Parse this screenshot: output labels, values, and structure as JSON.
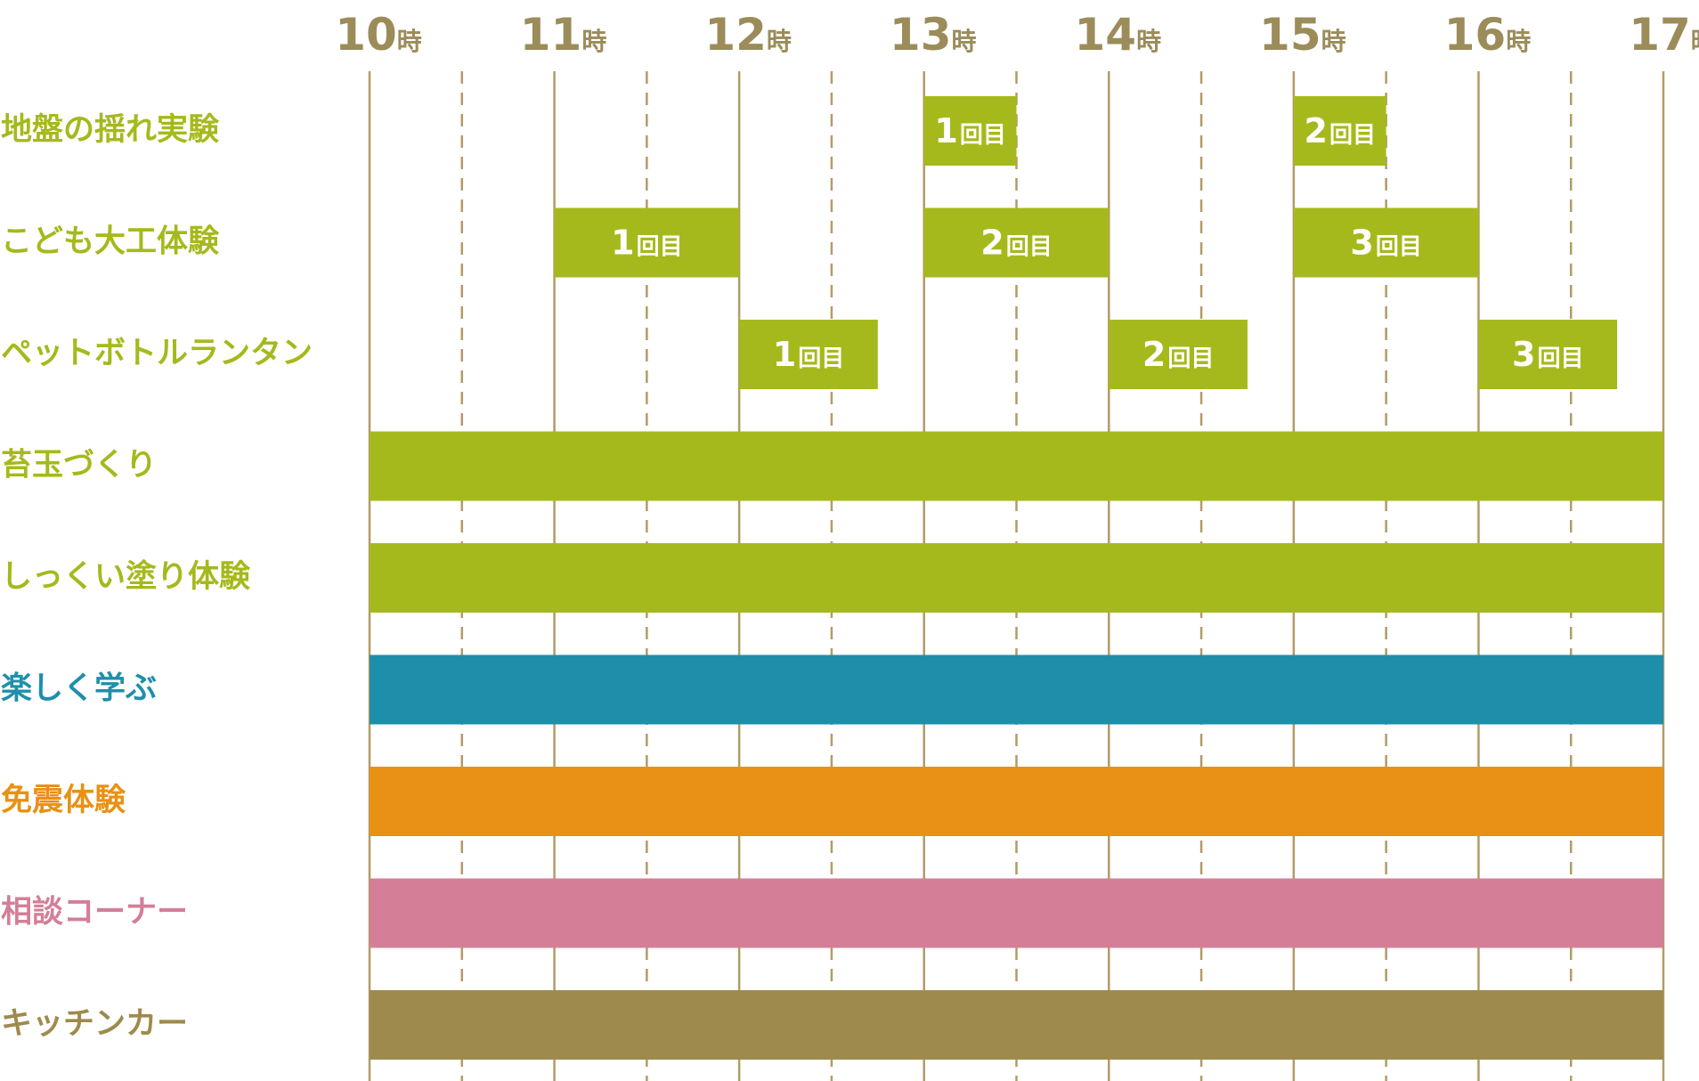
{
  "colors": {
    "grid": "#b29b66",
    "hour_label": "#9b8c5a",
    "green": "#a6b91c",
    "teal": "#1e8fab",
    "orange": "#e89114",
    "pink": "#d47e98",
    "olive": "#9e8a4c"
  },
  "chart_data": {
    "type": "gantt",
    "x_range": [
      10,
      17
    ],
    "x_ticks": [
      {
        "num": "10",
        "unit": "時"
      },
      {
        "num": "11",
        "unit": "時"
      },
      {
        "num": "12",
        "unit": "時"
      },
      {
        "num": "13",
        "unit": "時"
      },
      {
        "num": "14",
        "unit": "時"
      },
      {
        "num": "15",
        "unit": "時"
      },
      {
        "num": "16",
        "unit": "時"
      },
      {
        "num": "17",
        "unit": "時"
      }
    ],
    "minor_ticks": [
      10.5,
      11.5,
      12.5,
      13.5,
      14.5,
      15.5,
      16.5
    ],
    "rows": [
      {
        "label": "地盤の揺れ実験",
        "color": "#a6b91c",
        "segments": [
          {
            "start": 13.0,
            "end": 13.5,
            "num": "1",
            "unit": "回目"
          },
          {
            "start": 15.0,
            "end": 15.5,
            "num": "2",
            "unit": "回目"
          }
        ]
      },
      {
        "label": "こども大工体験",
        "color": "#a6b91c",
        "segments": [
          {
            "start": 11.0,
            "end": 12.0,
            "num": "1",
            "unit": "回目"
          },
          {
            "start": 13.0,
            "end": 14.0,
            "num": "2",
            "unit": "回目"
          },
          {
            "start": 15.0,
            "end": 16.0,
            "num": "3",
            "unit": "回目"
          }
        ]
      },
      {
        "label": "ペットボトルランタン",
        "color": "#a6b91c",
        "segments": [
          {
            "start": 12.0,
            "end": 12.75,
            "num": "1",
            "unit": "回目"
          },
          {
            "start": 14.0,
            "end": 14.75,
            "num": "2",
            "unit": "回目"
          },
          {
            "start": 16.0,
            "end": 16.75,
            "num": "3",
            "unit": "回目"
          }
        ]
      },
      {
        "label": "苔玉づくり",
        "color": "#a6b91c",
        "segments": [
          {
            "start": 10.0,
            "end": 17.0
          }
        ]
      },
      {
        "label": "しっくい塗り体験",
        "color": "#a6b91c",
        "segments": [
          {
            "start": 10.0,
            "end": 17.0
          }
        ]
      },
      {
        "label": "楽しく学ぶ",
        "color": "#1e8fab",
        "segments": [
          {
            "start": 10.0,
            "end": 17.0
          }
        ]
      },
      {
        "label": "免震体験",
        "color": "#e89114",
        "segments": [
          {
            "start": 10.0,
            "end": 17.0
          }
        ]
      },
      {
        "label": "相談コーナー",
        "color": "#d47e98",
        "segments": [
          {
            "start": 10.0,
            "end": 17.0
          }
        ]
      },
      {
        "label": "キッチンカー",
        "color": "#9e8a4c",
        "segments": [
          {
            "start": 10.0,
            "end": 17.0
          }
        ]
      }
    ]
  }
}
